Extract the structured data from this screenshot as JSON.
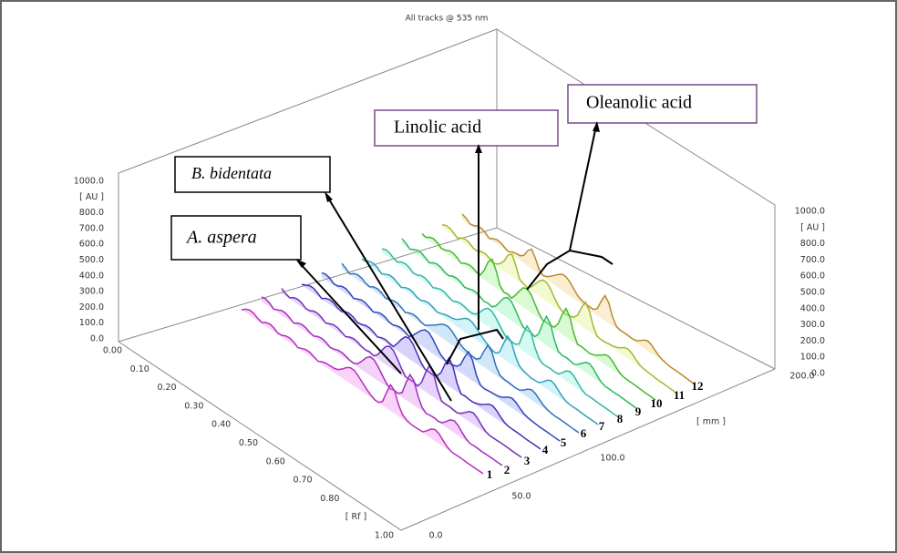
{
  "title": "All tracks @ 535 nm",
  "left_axis": {
    "labels": [
      "1000.0",
      "[ AU ]",
      "800.0",
      "700.0",
      "600.0",
      "500.0",
      "400.0",
      "300.0",
      "200.0",
      "100.0",
      "0.0"
    ]
  },
  "right_axis": {
    "labels": [
      "1000.0",
      "[ AU ]",
      "800.0",
      "700.0",
      "600.0",
      "500.0",
      "400.0",
      "300.0",
      "200.0",
      "100.0",
      "0.0"
    ]
  },
  "rf_axis": {
    "labels": [
      "0.00",
      "0.10",
      "0.20",
      "0.30",
      "0.40",
      "0.50",
      "0.60",
      "0.70",
      "0.80",
      "[ Rf ]",
      "1.00"
    ]
  },
  "mm_axis": {
    "labels": [
      "0.0",
      "50.0",
      "100.0",
      "[ mm ]",
      "200.0"
    ]
  },
  "tracks": [
    "1",
    "2",
    "3",
    "4",
    "5",
    "6",
    "7",
    "8",
    "9",
    "10",
    "11",
    "12"
  ],
  "annotations": [
    "A. aspera",
    "B. bidentata",
    "Linolic acid",
    "Oleanolic acid"
  ]
}
